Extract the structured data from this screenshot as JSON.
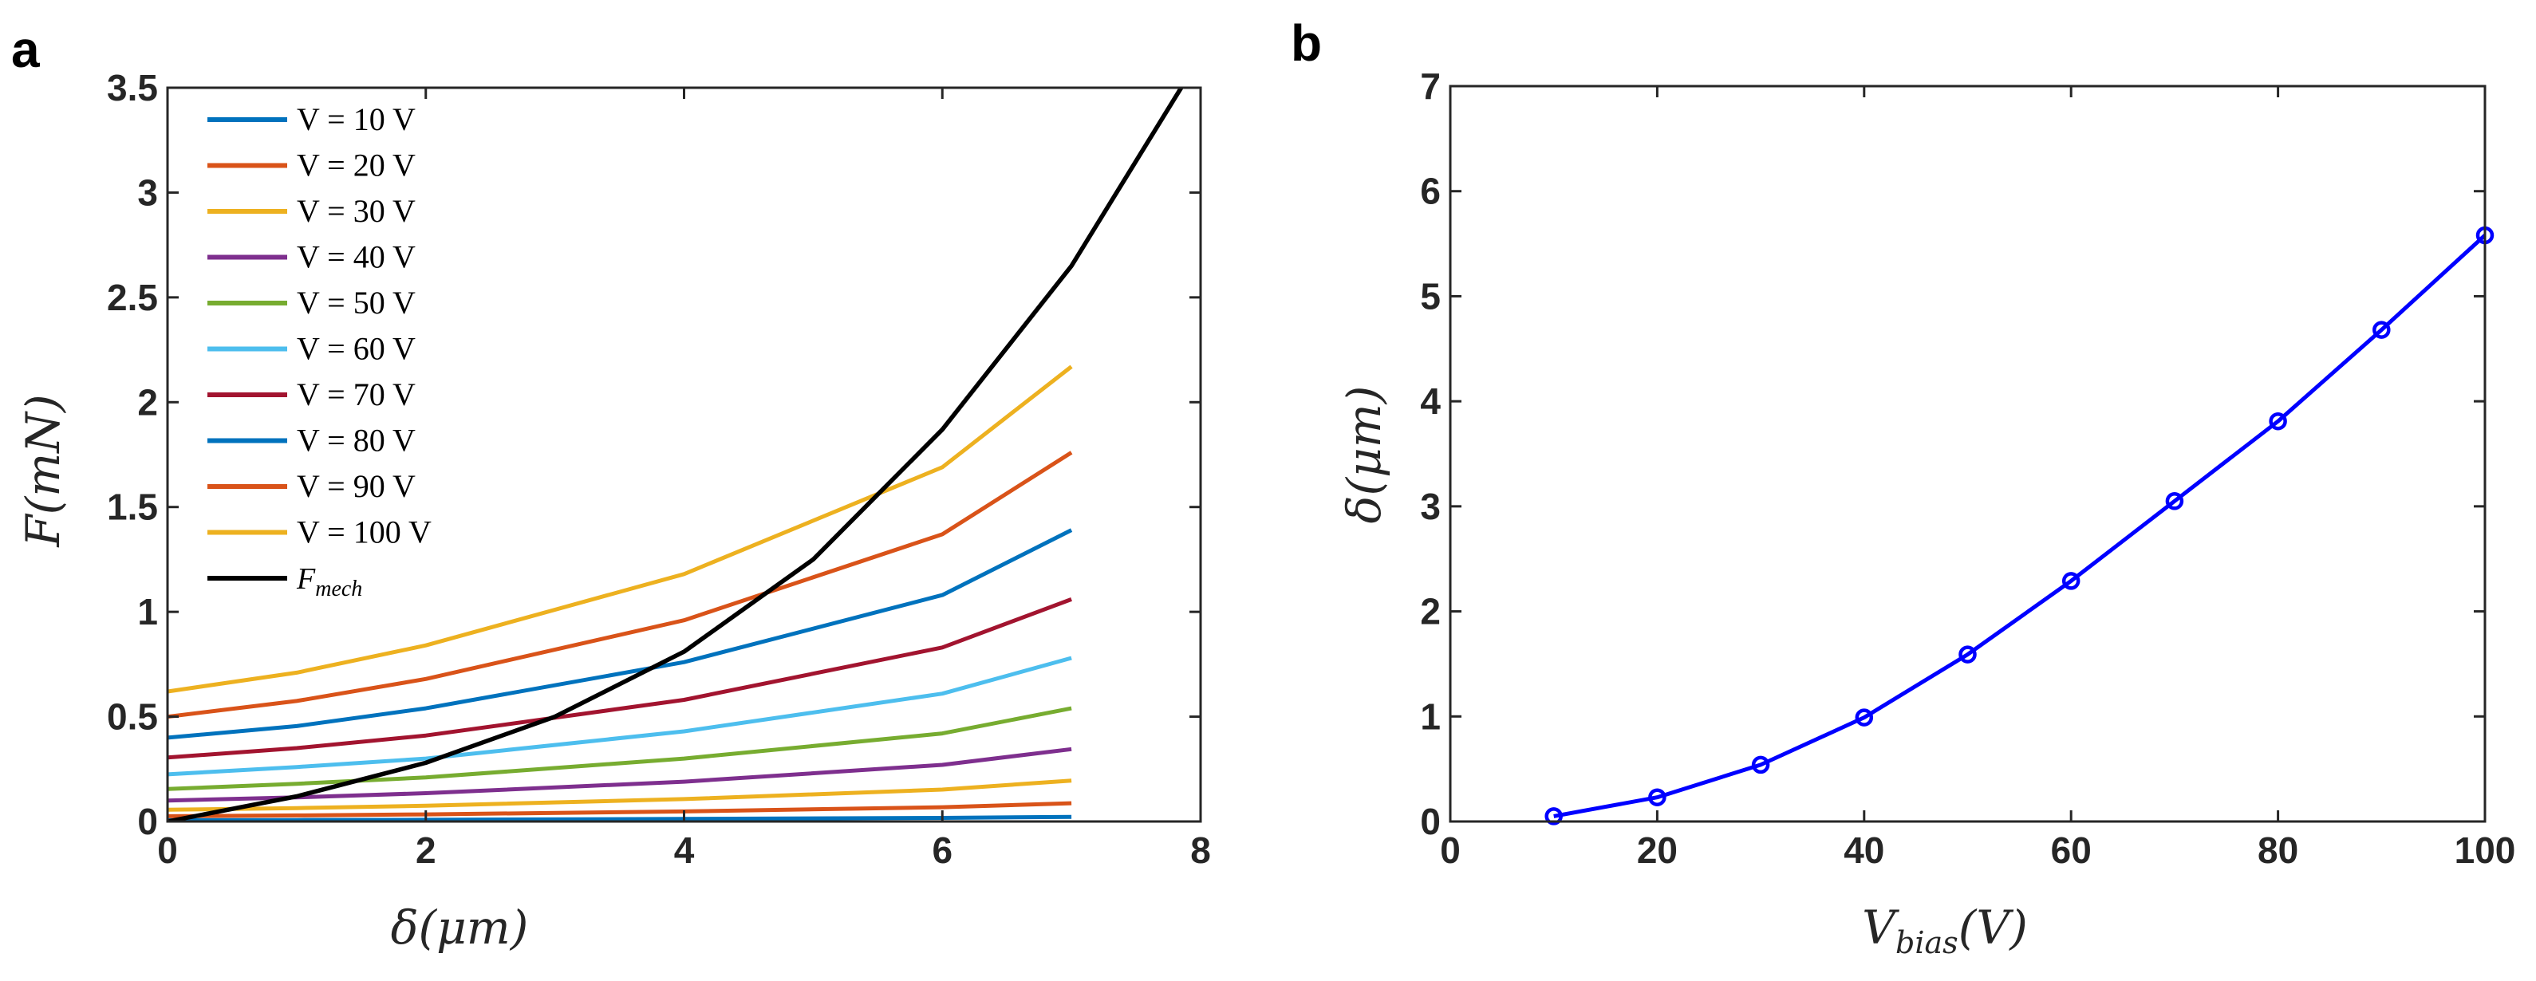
{
  "panel_labels": {
    "a": "a",
    "b": "b"
  },
  "chart_data": [
    {
      "type": "line",
      "panel": "a",
      "xlabel": "δ(μm)",
      "ylabel": "F(mN)",
      "xlim": [
        0,
        8
      ],
      "ylim": [
        0,
        3.5
      ],
      "x_ticks": [
        "0",
        "2",
        "4",
        "6",
        "8"
      ],
      "y_ticks": [
        "0",
        "0.5",
        "1",
        "1.5",
        "2",
        "2.5",
        "3",
        "3.5"
      ],
      "grid": false,
      "legend_position": "top-left",
      "x": [
        0,
        1,
        2,
        4,
        6,
        7
      ],
      "series": [
        {
          "name": "V = 10 V",
          "color": "#0072BD",
          "values": [
            0.006,
            0.007,
            0.008,
            0.012,
            0.017,
            0.022
          ]
        },
        {
          "name": "V = 20 V",
          "color": "#D95319",
          "values": [
            0.025,
            0.029,
            0.034,
            0.048,
            0.068,
            0.087
          ]
        },
        {
          "name": "V = 30 V",
          "color": "#EDB120",
          "values": [
            0.056,
            0.064,
            0.075,
            0.107,
            0.152,
            0.195
          ]
        },
        {
          "name": "V = 40 V",
          "color": "#7E2F8E",
          "values": [
            0.1,
            0.115,
            0.135,
            0.19,
            0.27,
            0.345
          ]
        },
        {
          "name": "V = 50 V",
          "color": "#77AC30",
          "values": [
            0.155,
            0.18,
            0.21,
            0.3,
            0.42,
            0.54
          ]
        },
        {
          "name": "V = 60 V",
          "color": "#4DBEEE",
          "values": [
            0.225,
            0.26,
            0.3,
            0.43,
            0.61,
            0.78
          ]
        },
        {
          "name": "V = 70 V",
          "color": "#A2142F",
          "values": [
            0.305,
            0.35,
            0.41,
            0.58,
            0.83,
            1.06
          ]
        },
        {
          "name": "V = 80 V",
          "color": "#0072BD",
          "values": [
            0.4,
            0.455,
            0.54,
            0.76,
            1.08,
            1.39
          ]
        },
        {
          "name": "V = 90 V",
          "color": "#D95319",
          "values": [
            0.5,
            0.575,
            0.68,
            0.96,
            1.37,
            1.76
          ]
        },
        {
          "name": "V = 100 V",
          "color": "#EDB120",
          "values": [
            0.62,
            0.71,
            0.84,
            1.18,
            1.69,
            2.17
          ]
        }
      ],
      "mech_curve": {
        "name": "F_mech",
        "name_main": "F",
        "name_sub": "mech",
        "color": "#000000",
        "x": [
          0,
          1,
          2,
          3,
          4,
          5,
          6,
          7,
          7.85
        ],
        "values": [
          0,
          0.12,
          0.28,
          0.5,
          0.81,
          1.25,
          1.87,
          2.65,
          3.5
        ]
      }
    },
    {
      "type": "line",
      "panel": "b",
      "xlabel": "V_bias(V)",
      "xlabel_main": "V",
      "xlabel_sub": "bias",
      "xlabel_tail": "(V)",
      "ylabel": "δ(μm)",
      "xlim": [
        0,
        100
      ],
      "ylim": [
        0,
        7
      ],
      "x_ticks": [
        "0",
        "20",
        "40",
        "60",
        "80",
        "100"
      ],
      "y_ticks": [
        "0",
        "1",
        "2",
        "3",
        "4",
        "5",
        "6",
        "7"
      ],
      "grid": false,
      "marker": "circle",
      "color": "#0000FF",
      "x": [
        10,
        20,
        30,
        40,
        50,
        60,
        70,
        80,
        90,
        100
      ],
      "values": [
        0.05,
        0.23,
        0.54,
        0.99,
        1.59,
        2.29,
        3.05,
        3.81,
        4.68,
        5.58
      ]
    }
  ]
}
